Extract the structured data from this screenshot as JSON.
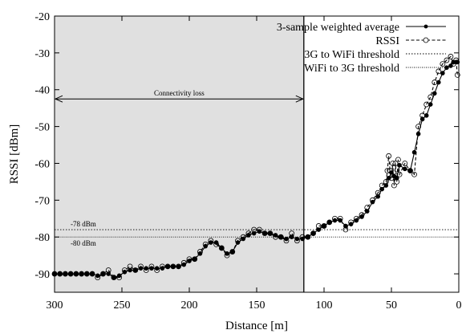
{
  "chart_data": {
    "type": "line",
    "xlabel": "Distance [m]",
    "ylabel": "RSSI [dBm]",
    "xlim": [
      300,
      0
    ],
    "ylim": [
      -95,
      -20
    ],
    "x_ticks": [
      300,
      250,
      200,
      150,
      100,
      50,
      0
    ],
    "y_ticks": [
      -20,
      -30,
      -40,
      -50,
      -60,
      -70,
      -80,
      -90
    ],
    "legend_position": "top-right",
    "grid": false,
    "series": [
      {
        "name": "3-sample weighted average",
        "marker": "filled-circle",
        "line": "solid",
        "x": [
          300,
          296,
          292,
          288,
          284,
          280,
          276,
          272,
          268,
          264,
          260,
          256,
          252,
          248,
          244,
          240,
          236,
          232,
          228,
          224,
          220,
          216,
          212,
          208,
          204,
          200,
          196,
          192,
          188,
          184,
          180,
          176,
          172,
          168,
          164,
          160,
          156,
          152,
          148,
          144,
          140,
          136,
          132,
          128,
          124,
          120,
          116,
          112,
          108,
          104,
          100,
          96,
          92,
          88,
          84,
          80,
          76,
          72,
          68,
          64,
          60,
          57,
          54,
          52,
          50,
          48,
          46,
          44,
          40,
          36,
          33,
          30,
          27,
          24,
          21,
          18,
          15,
          12,
          9,
          6,
          4,
          2,
          1
        ],
        "y": [
          -90,
          -90,
          -90,
          -90,
          -90,
          -90,
          -90,
          -90,
          -90.5,
          -90,
          -90,
          -91,
          -90.5,
          -89.5,
          -89,
          -89,
          -88.5,
          -88.5,
          -88.5,
          -88.5,
          -88.5,
          -88,
          -88,
          -88,
          -87.5,
          -86.5,
          -86,
          -84.5,
          -82.5,
          -81.5,
          -81.5,
          -83,
          -84.5,
          -84,
          -81.5,
          -80.5,
          -79.5,
          -79,
          -78.5,
          -79,
          -79,
          -79.5,
          -80,
          -80.5,
          -80,
          -80.5,
          -80.5,
          -80,
          -79,
          -78,
          -77,
          -76,
          -75.5,
          -75.5,
          -77,
          -76.5,
          -75.5,
          -74.5,
          -73,
          -70.5,
          -69,
          -67,
          -66,
          -64,
          -62.5,
          -63.5,
          -64,
          -60.5,
          -61.5,
          -62,
          -57,
          -52,
          -48,
          -47,
          -44,
          -41,
          -38,
          -35.5,
          -34,
          -33.5,
          -32.5,
          -32.5,
          -32.5
        ]
      },
      {
        "name": "RSSI",
        "marker": "open-circle",
        "line": "dashed",
        "x": [
          300,
          296,
          292,
          288,
          284,
          280,
          276,
          272,
          268,
          264,
          260,
          256,
          252,
          248,
          244,
          240,
          236,
          232,
          228,
          224,
          220,
          216,
          212,
          208,
          204,
          200,
          196,
          192,
          188,
          184,
          180,
          176,
          172,
          168,
          164,
          160,
          156,
          152,
          148,
          144,
          140,
          136,
          132,
          128,
          124,
          120,
          116,
          112,
          108,
          104,
          100,
          96,
          92,
          88,
          84,
          80,
          76,
          72,
          68,
          64,
          60,
          57,
          54,
          53,
          52,
          51,
          50,
          49,
          48,
          47,
          46,
          45,
          44,
          40,
          36,
          33,
          30,
          27,
          24,
          21,
          18,
          15,
          12,
          9,
          6,
          4,
          2,
          1
        ],
        "y": [
          -90,
          -90,
          -90,
          -90,
          -90,
          -90,
          -90,
          -90,
          -91,
          -90,
          -89,
          -91,
          -91,
          -89,
          -88,
          -89,
          -88,
          -89,
          -88,
          -89,
          -88,
          -88,
          -88,
          -88,
          -87,
          -86,
          -86,
          -84,
          -82,
          -81,
          -82,
          -83,
          -85,
          -84,
          -81,
          -80,
          -79,
          -78,
          -78,
          -79,
          -79,
          -80,
          -80,
          -81,
          -79,
          -81,
          -80,
          -80,
          -79,
          -77,
          -77,
          -76,
          -75,
          -75,
          -78,
          -76,
          -75,
          -74,
          -72,
          -70,
          -68,
          -66,
          -65,
          -62,
          -58,
          -62,
          -64,
          -60,
          -66,
          -60,
          -65,
          -59,
          -63,
          -60,
          -62,
          -63,
          -50,
          -47,
          -44,
          -42,
          -38,
          -35,
          -33,
          -32,
          -31,
          -33,
          -32,
          -36
        ]
      },
      {
        "name": "3G to WiFi threshold",
        "marker": "none",
        "line": "dotted",
        "y": -78,
        "annotation": "-78 dBm"
      },
      {
        "name": "WiFi to 3G threshold",
        "marker": "none",
        "line": "fine-dotted",
        "y": -80,
        "annotation": "-80 dBm"
      }
    ],
    "region": {
      "label": "Connectivity loss",
      "x_from": 300,
      "x_to": 115
    }
  }
}
